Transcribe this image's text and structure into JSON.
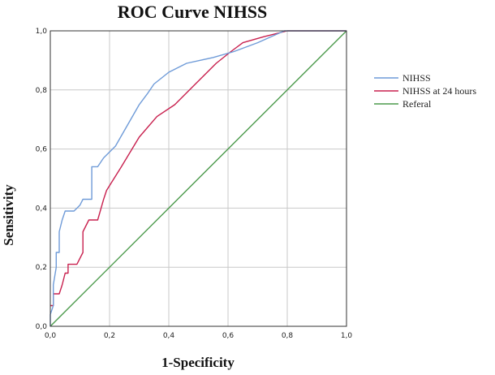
{
  "chart_data": {
    "type": "line",
    "title": "ROC Curve NIHSS",
    "xlabel": "1-Specificity",
    "ylabel": "Sensitivity",
    "xlim": [
      0,
      1
    ],
    "ylim": [
      0,
      1
    ],
    "xticks": [
      "0,0",
      "0,2",
      "0,4",
      "0,6",
      "0,8",
      "1,0"
    ],
    "yticks": [
      "0,0",
      "0,2",
      "0,4",
      "0,6",
      "0,8",
      "1,0"
    ],
    "grid": true,
    "legend_position": "right",
    "series": [
      {
        "name": "NIHSS",
        "color": "#6f9bd8",
        "points": [
          [
            0,
            0
          ],
          [
            0,
            0.04
          ],
          [
            0.01,
            0.07
          ],
          [
            0.01,
            0.14
          ],
          [
            0.02,
            0.2
          ],
          [
            0.02,
            0.25
          ],
          [
            0.03,
            0.25
          ],
          [
            0.03,
            0.32
          ],
          [
            0.04,
            0.36
          ],
          [
            0.05,
            0.39
          ],
          [
            0.08,
            0.39
          ],
          [
            0.1,
            0.41
          ],
          [
            0.11,
            0.43
          ],
          [
            0.14,
            0.43
          ],
          [
            0.14,
            0.46
          ],
          [
            0.14,
            0.54
          ],
          [
            0.16,
            0.54
          ],
          [
            0.18,
            0.57
          ],
          [
            0.22,
            0.61
          ],
          [
            0.26,
            0.68
          ],
          [
            0.3,
            0.75
          ],
          [
            0.33,
            0.79
          ],
          [
            0.35,
            0.82
          ],
          [
            0.4,
            0.86
          ],
          [
            0.46,
            0.89
          ],
          [
            0.55,
            0.91
          ],
          [
            0.62,
            0.93
          ],
          [
            0.7,
            0.96
          ],
          [
            0.79,
            1.0
          ],
          [
            1.0,
            1.0
          ]
        ]
      },
      {
        "name": "NIHSS at 24 hours",
        "color": "#c8204e",
        "points": [
          [
            0,
            0.07
          ],
          [
            0.01,
            0.07
          ],
          [
            0.01,
            0.11
          ],
          [
            0.03,
            0.11
          ],
          [
            0.04,
            0.14
          ],
          [
            0.05,
            0.18
          ],
          [
            0.06,
            0.18
          ],
          [
            0.06,
            0.21
          ],
          [
            0.09,
            0.21
          ],
          [
            0.11,
            0.25
          ],
          [
            0.11,
            0.29
          ],
          [
            0.11,
            0.32
          ],
          [
            0.13,
            0.36
          ],
          [
            0.16,
            0.36
          ],
          [
            0.18,
            0.43
          ],
          [
            0.19,
            0.46
          ],
          [
            0.24,
            0.54
          ],
          [
            0.3,
            0.64
          ],
          [
            0.36,
            0.71
          ],
          [
            0.42,
            0.75
          ],
          [
            0.49,
            0.82
          ],
          [
            0.56,
            0.89
          ],
          [
            0.61,
            0.93
          ],
          [
            0.65,
            0.96
          ],
          [
            0.72,
            0.98
          ],
          [
            0.8,
            1.0
          ],
          [
            1.0,
            1.0
          ]
        ]
      },
      {
        "name": "Referal",
        "color": "#4c9a4c",
        "points": [
          [
            0,
            0
          ],
          [
            1,
            1
          ]
        ]
      }
    ]
  }
}
